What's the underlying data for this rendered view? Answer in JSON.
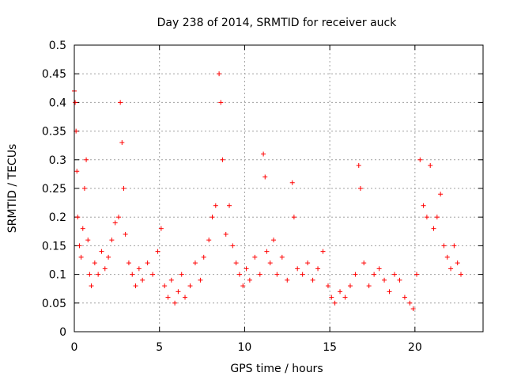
{
  "chart_data": {
    "type": "scatter",
    "title": "Day 238 of 2014, SRMTID for receiver auck",
    "xlabel": "GPS time / hours",
    "ylabel": "SRMTID / TECUs",
    "xlim": [
      0,
      24
    ],
    "ylim": [
      0,
      0.5
    ],
    "grid": true,
    "marker": "+",
    "marker_color": "#ff0000",
    "xticks": [
      0,
      5,
      10,
      15,
      20
    ],
    "xtick_labels": [
      "0",
      "5",
      "10",
      "15",
      "20"
    ],
    "yticks": [
      0,
      0.05,
      0.1,
      0.15,
      0.2,
      0.25,
      0.3,
      0.35,
      0.4,
      0.45,
      0.5
    ],
    "ytick_labels": [
      "0",
      "0.05",
      "0.1",
      "0.15",
      "0.2",
      "0.25",
      "0.3",
      "0.35",
      "0.4",
      "0.45",
      "0.5"
    ],
    "series": [
      {
        "name": "SRMTID",
        "x": [
          0.0,
          0.05,
          0.1,
          0.15,
          0.2,
          0.3,
          0.4,
          0.5,
          0.6,
          0.7,
          0.8,
          0.9,
          1.0,
          1.2,
          1.4,
          1.6,
          1.8,
          2.0,
          2.2,
          2.4,
          2.6,
          2.7,
          2.8,
          2.9,
          3.0,
          3.2,
          3.4,
          3.6,
          3.8,
          4.0,
          4.3,
          4.6,
          4.9,
          5.1,
          5.3,
          5.5,
          5.7,
          5.9,
          6.1,
          6.3,
          6.5,
          6.8,
          7.1,
          7.4,
          7.6,
          7.9,
          8.1,
          8.3,
          8.5,
          8.6,
          8.7,
          8.9,
          9.1,
          9.3,
          9.5,
          9.7,
          9.9,
          10.1,
          10.3,
          10.6,
          10.9,
          11.1,
          11.2,
          11.3,
          11.5,
          11.7,
          11.9,
          12.2,
          12.5,
          12.8,
          12.9,
          13.1,
          13.4,
          13.7,
          14.0,
          14.3,
          14.6,
          14.9,
          15.1,
          15.3,
          15.6,
          15.9,
          16.2,
          16.5,
          16.7,
          16.8,
          17.0,
          17.3,
          17.6,
          17.9,
          18.2,
          18.5,
          18.8,
          19.1,
          19.4,
          19.7,
          19.9,
          20.1,
          20.3,
          20.5,
          20.7,
          20.9,
          21.1,
          21.3,
          21.5,
          21.7,
          21.9,
          22.1,
          22.3,
          22.5,
          22.7
        ],
        "y": [
          0.42,
          0.4,
          0.35,
          0.28,
          0.2,
          0.15,
          0.13,
          0.18,
          0.25,
          0.3,
          0.16,
          0.1,
          0.08,
          0.12,
          0.1,
          0.14,
          0.11,
          0.13,
          0.16,
          0.19,
          0.2,
          0.4,
          0.33,
          0.25,
          0.17,
          0.12,
          0.1,
          0.08,
          0.11,
          0.09,
          0.12,
          0.1,
          0.14,
          0.18,
          0.08,
          0.06,
          0.09,
          0.05,
          0.07,
          0.1,
          0.06,
          0.08,
          0.12,
          0.09,
          0.13,
          0.16,
          0.2,
          0.22,
          0.45,
          0.4,
          0.3,
          0.17,
          0.22,
          0.15,
          0.12,
          0.1,
          0.08,
          0.11,
          0.09,
          0.13,
          0.1,
          0.31,
          0.27,
          0.14,
          0.12,
          0.16,
          0.1,
          0.13,
          0.09,
          0.26,
          0.2,
          0.11,
          0.1,
          0.12,
          0.09,
          0.11,
          0.14,
          0.08,
          0.06,
          0.05,
          0.07,
          0.06,
          0.08,
          0.1,
          0.29,
          0.25,
          0.12,
          0.08,
          0.1,
          0.11,
          0.09,
          0.07,
          0.1,
          0.09,
          0.06,
          0.05,
          0.04,
          0.1,
          0.3,
          0.22,
          0.2,
          0.29,
          0.18,
          0.2,
          0.24,
          0.15,
          0.13,
          0.11,
          0.15,
          0.12,
          0.1
        ]
      }
    ]
  }
}
